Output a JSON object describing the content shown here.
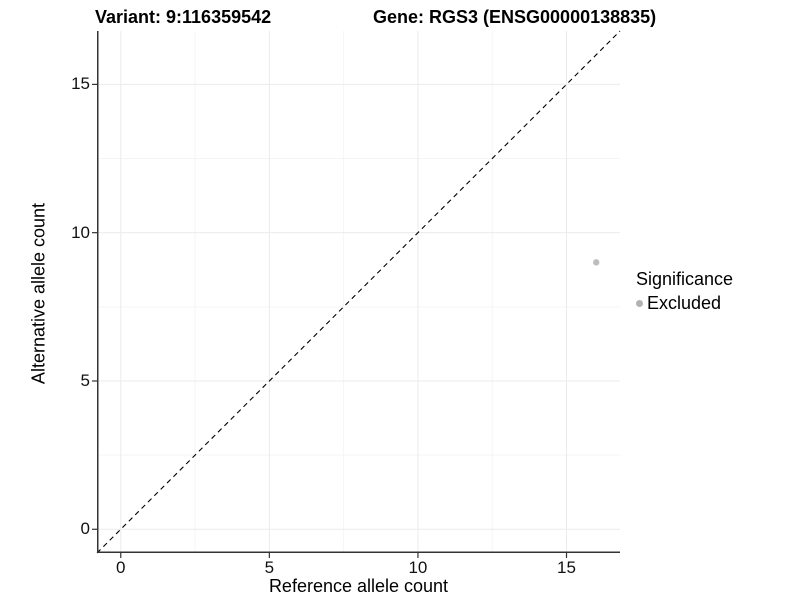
{
  "header": {
    "variant_title": "Variant: 9:116359542",
    "gene_title": "Gene: RGS3 (ENSG00000138835)"
  },
  "legend": {
    "title": "Significance",
    "items": [
      {
        "label": "Excluded",
        "color": "#b2b2b2"
      }
    ]
  },
  "colors": {
    "point": "#bdbdbd",
    "axis_line": "#333333",
    "tick_mark": "#333333",
    "grid_major": "#ebebeb",
    "grid_minor": "#f5f5f5",
    "identity_line": "#000000"
  },
  "chart_data": {
    "type": "scatter",
    "title": "Variant: 9:116359542 — Gene: RGS3 (ENSG00000138835)",
    "xlabel": "Reference allele count",
    "ylabel": "Alternative allele count",
    "xlim": [
      -0.8,
      16.8
    ],
    "ylim": [
      -0.8,
      16.8
    ],
    "x_ticks": [
      0,
      5,
      10,
      15
    ],
    "y_ticks": [
      0,
      5,
      10,
      15
    ],
    "grid": true,
    "legend_position": "right",
    "series": [
      {
        "name": "Excluded",
        "color": "#bdbdbd",
        "point_radius": 3.2,
        "points": [
          {
            "x": 16,
            "y": 9
          }
        ]
      }
    ],
    "reference_line": {
      "type": "identity",
      "style": "dashed",
      "x1": -0.8,
      "y1": -0.8,
      "x2": 16.8,
      "y2": 16.8
    }
  }
}
